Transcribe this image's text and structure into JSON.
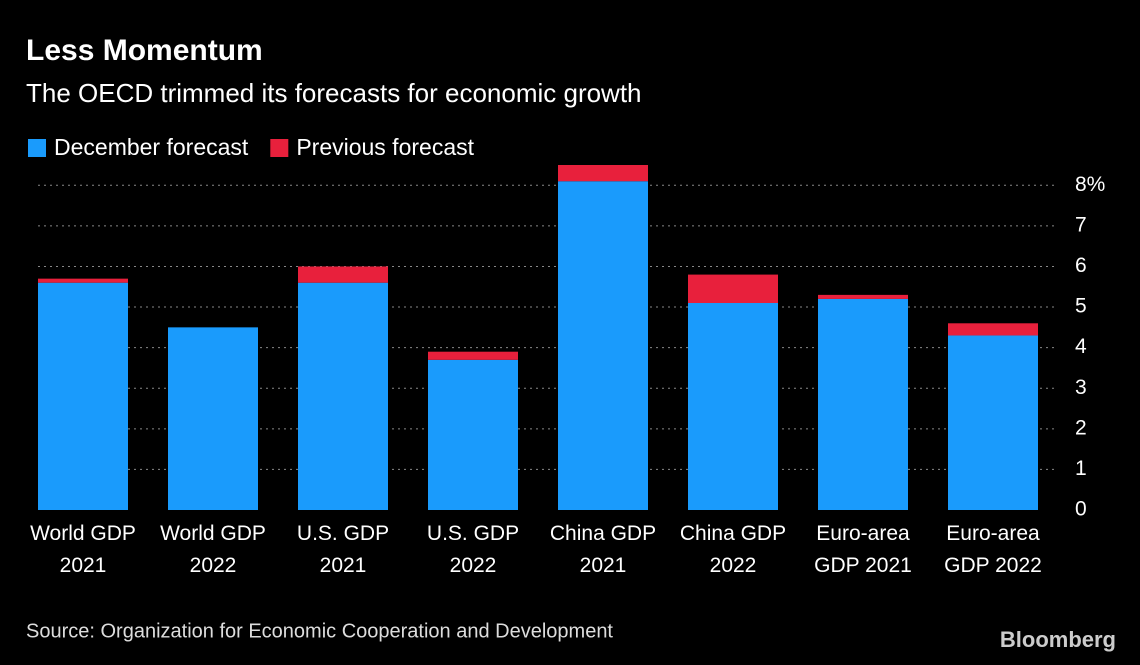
{
  "chart_data": {
    "type": "stacked_bar",
    "title": "Less Momentum",
    "subtitle": "The OECD trimmed its forecasts for economic growth",
    "categories": [
      "World GDP\n2021",
      "World GDP\n2022",
      "U.S. GDP\n2021",
      "U.S. GDP\n2022",
      "China GDP\n2021",
      "China GDP\n2022",
      "Euro-area\nGDP 2021",
      "Euro-area\nGDP 2022"
    ],
    "series": [
      {
        "name": "December forecast",
        "color": "#1a9bfc",
        "values": [
          5.6,
          4.5,
          5.6,
          3.7,
          8.1,
          5.1,
          5.2,
          4.3
        ]
      },
      {
        "name": "Previous forecast",
        "color": "#e8203c",
        "values": [
          0.1,
          0,
          0.4,
          0.2,
          0.4,
          0.7,
          0.1,
          0.3
        ]
      }
    ],
    "ylim": [
      0,
      8.5
    ],
    "yticks": [
      0,
      1,
      2,
      3,
      4,
      5,
      6,
      7,
      {
        "value": 8,
        "label": "8%"
      }
    ],
    "grid": true,
    "source": "Source: Organization for Economic Cooperation and Development",
    "brand": "Bloomberg"
  }
}
